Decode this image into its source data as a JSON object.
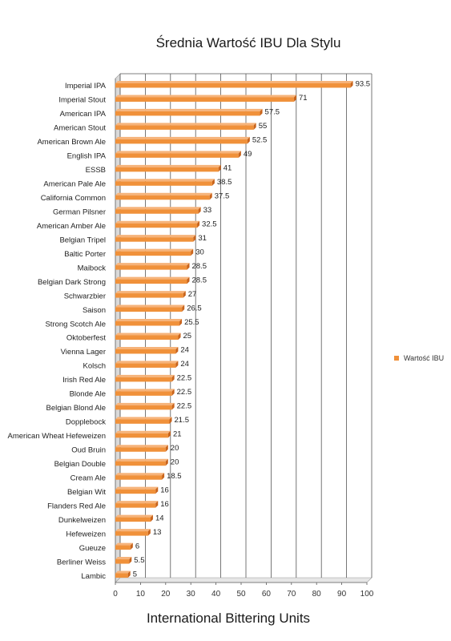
{
  "chart_data": {
    "type": "bar",
    "orientation": "horizontal",
    "title": "Średnia Wartość IBU Dla Stylu",
    "xlabel": "International Bittering Units",
    "ylabel": "",
    "xlim": [
      0,
      100
    ],
    "xticks": [
      0,
      10,
      20,
      30,
      40,
      50,
      60,
      70,
      80,
      90,
      100
    ],
    "grid": true,
    "legend_position": "right",
    "bar_color": "#f0913a",
    "categories": [
      "Imperial IPA",
      "Imperial Stout",
      "American IPA",
      "American Stout",
      "American Brown Ale",
      "English IPA",
      "ESSB",
      "American Pale Ale",
      "California Common",
      "German Pilsner",
      "American Amber Ale",
      "Belgian Tripel",
      "Baltic Porter",
      "Maibock",
      "Belgian Dark Strong",
      "Schwarzbier",
      "Saison",
      "Strong Scotch Ale",
      "Oktoberfest",
      "Vienna Lager",
      "Kolsch",
      "Irish Red Ale",
      "Blonde Ale",
      "Belgian Blond Ale",
      "Dopplebock",
      "American Wheat Hefeweizen",
      "Oud Bruin",
      "Belgian Double",
      "Cream Ale",
      "Belgian Wit",
      "Flanders Red Ale",
      "Dunkelweizen",
      "Hefeweizen",
      "Gueuze",
      "Berliner Weiss",
      "Lambic"
    ],
    "series": [
      {
        "name": "Wartość IBU",
        "values": [
          93.5,
          71,
          57.5,
          55,
          52.5,
          49,
          41,
          38.5,
          37.5,
          33,
          32.5,
          31,
          30,
          28.5,
          28.5,
          27,
          26.5,
          25.5,
          25,
          24,
          24,
          22.5,
          22.5,
          22.5,
          21.5,
          21,
          20,
          20,
          18.5,
          16,
          16,
          14,
          13,
          6,
          5.5,
          5
        ]
      }
    ]
  }
}
